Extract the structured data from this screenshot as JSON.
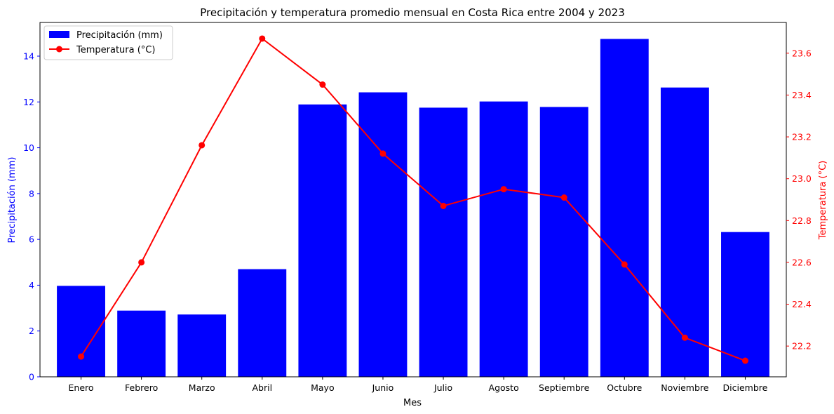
{
  "chart_data": {
    "type": "bar+line",
    "title": "Precipitación y temperatura promedio mensual en Costa Rica entre 2004 y 2023",
    "xlabel": "Mes",
    "categories": [
      "Enero",
      "Febrero",
      "Marzo",
      "Abril",
      "Mayo",
      "Junio",
      "Julio",
      "Agosto",
      "Septiembre",
      "Octubre",
      "Noviembre",
      "Diciembre"
    ],
    "series": [
      {
        "name": "Precipitación (mm)",
        "type": "bar",
        "axis": "left",
        "color": "#0000ff",
        "values": [
          3.97,
          2.89,
          2.72,
          4.7,
          11.89,
          12.42,
          11.75,
          12.02,
          11.78,
          14.75,
          12.63,
          6.32
        ]
      },
      {
        "name": "Temperatura (°C)",
        "type": "line",
        "axis": "right",
        "color": "#ff0000",
        "values": [
          22.15,
          22.6,
          23.16,
          23.67,
          23.45,
          23.12,
          22.87,
          22.95,
          22.91,
          22.59,
          22.24,
          22.13
        ]
      }
    ],
    "y_left": {
      "label": "Precipitación (mm)",
      "color": "#0000ff",
      "ylim": [
        0,
        15.47
      ],
      "ticks": [
        0,
        2,
        4,
        6,
        8,
        10,
        12,
        14
      ],
      "tick_labels": [
        "0",
        "2",
        "4",
        "6",
        "8",
        "10",
        "12",
        "14"
      ]
    },
    "y_right": {
      "label": "Temperatura (°C)",
      "color": "#ff0000",
      "ylim": [
        22.053,
        23.747
      ],
      "ticks": [
        22.2,
        22.4,
        22.6,
        22.8,
        23.0,
        23.2,
        23.4,
        23.6
      ],
      "tick_labels": [
        "22.2",
        "22.4",
        "22.6",
        "22.8",
        "23.0",
        "23.2",
        "23.4",
        "23.6"
      ]
    },
    "legend_position": "top-left",
    "grid": false
  }
}
